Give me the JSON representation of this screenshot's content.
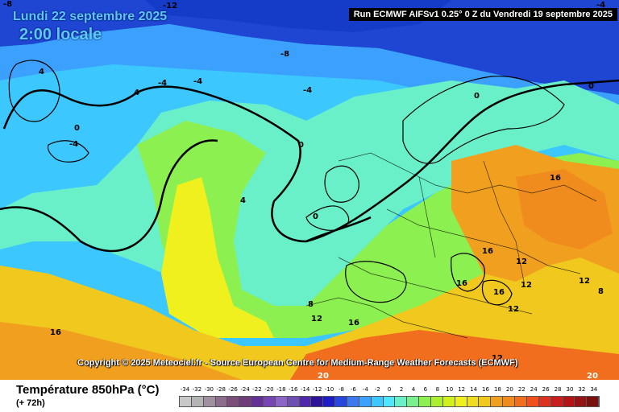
{
  "header": {
    "date": "Lundi 22 septembre 2025",
    "time": "2:00 locale",
    "run": "Run ECMWF AIFSv1 0.25° 0 Z du Vendredi 19 septembre 2025"
  },
  "copyright": "Copyright © 2025 Meteociel.fr - Source European Centre for Medium-Range Weather Forecasts (ECMWF)",
  "footer": {
    "field_name": "Température 850hPa (°C)",
    "lead": "(+ 72h)"
  },
  "scale": {
    "ticks": [
      "-34",
      "-32",
      "-30",
      "-28",
      "-26",
      "-24",
      "-22",
      "-20",
      "-18",
      "-16",
      "-14",
      "-12",
      "-10",
      "-8",
      "-6",
      "-4",
      "-2",
      "0",
      "2",
      "4",
      "6",
      "8",
      "10",
      "12",
      "14",
      "16",
      "18",
      "20",
      "22",
      "24",
      "26",
      "28",
      "30",
      "32",
      "34"
    ],
    "colors": [
      "#c8c8c8",
      "#b4b4b4",
      "#a090a0",
      "#8c6e8c",
      "#7a507a",
      "#6e3c78",
      "#643296",
      "#7846b4",
      "#8c64c8",
      "#6e50b4",
      "#5028aa",
      "#2e1496",
      "#1e1ec8",
      "#2846dc",
      "#3c78f0",
      "#3ca0ff",
      "#3cc8ff",
      "#50e6ff",
      "#6af0c8",
      "#78f08c",
      "#8cf050",
      "#aaf02e",
      "#d2f01e",
      "#f0f01e",
      "#f0dc1e",
      "#f0c81e",
      "#f0a01e",
      "#f08c1e",
      "#f06e1e",
      "#f0501e",
      "#dc321e",
      "#c81e1e",
      "#b41414",
      "#961414",
      "#781010"
    ]
  },
  "contour_labels": [
    {
      "text": "-8",
      "zone": "arctic-top-left"
    },
    {
      "text": "-12",
      "zone": "arctic-top-center"
    },
    {
      "text": "-4",
      "zone": "arctic-top-right"
    },
    {
      "text": "-8",
      "zone": "arctic-center"
    },
    {
      "text": "4",
      "zone": "greenland-west"
    },
    {
      "text": "-4",
      "zone": "greenland-coast"
    },
    {
      "text": "-4",
      "zone": "greenland-coast-2"
    },
    {
      "text": "4",
      "zone": "labrador-sea"
    },
    {
      "text": "-4",
      "zone": "iceland-sea"
    },
    {
      "text": "0",
      "zone": "hudson-bay"
    },
    {
      "text": "-4",
      "zone": "hudson-bay-south"
    },
    {
      "text": "0",
      "zone": "scandinavia-north"
    },
    {
      "text": "0",
      "zone": "barents"
    },
    {
      "text": "0",
      "zone": "north-atlantic"
    },
    {
      "text": "4",
      "zone": "mid-atlantic"
    },
    {
      "text": "0",
      "zone": "ireland"
    },
    {
      "text": "16",
      "zone": "russia"
    },
    {
      "text": "16",
      "zone": "balkans"
    },
    {
      "text": "12",
      "zone": "hungary"
    },
    {
      "text": "16",
      "zone": "italy"
    },
    {
      "text": "16",
      "zone": "greece"
    },
    {
      "text": "12",
      "zone": "turkey-west"
    },
    {
      "text": "12",
      "zone": "aegean"
    },
    {
      "text": "12",
      "zone": "black-sea"
    },
    {
      "text": "8",
      "zone": "caspian"
    },
    {
      "text": "8",
      "zone": "iberia"
    },
    {
      "text": "12",
      "zone": "morocco"
    },
    {
      "text": "16",
      "zone": "algeria"
    },
    {
      "text": "16",
      "zone": "atlantic-south"
    },
    {
      "text": "12",
      "zone": "libya"
    },
    {
      "text": "20",
      "zone": "sahara"
    },
    {
      "text": "20",
      "zone": "egypt"
    }
  ]
}
